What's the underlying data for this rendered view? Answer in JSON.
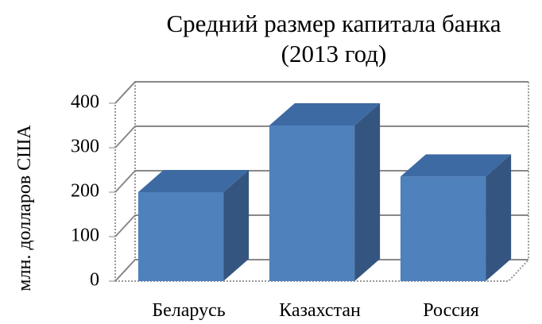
{
  "chart_data": {
    "type": "bar3d",
    "title": [
      "Средний размер капитала банка",
      "(2013 год)"
    ],
    "y_label": "млн. долларов США",
    "categories": [
      "Беларусь",
      "Казахстан",
      "Россия"
    ],
    "values": [
      200,
      350,
      235
    ],
    "color": "#4f81bd",
    "ylim": [
      0,
      400
    ],
    "yticks": [
      0,
      100,
      200,
      300,
      400
    ],
    "grid": true
  }
}
